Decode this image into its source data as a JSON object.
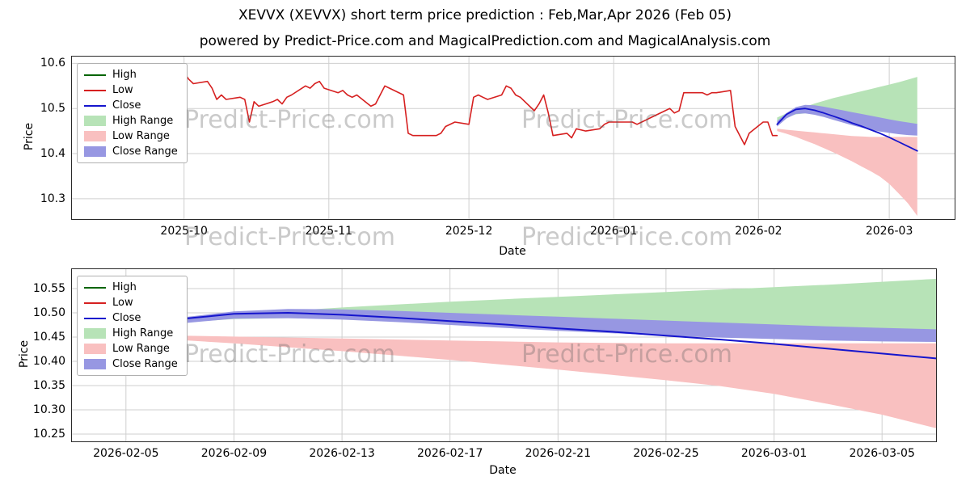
{
  "page": {
    "title": "XEVVX (XEVVX) short term price prediction : Feb,Mar,Apr 2026 (Feb 05)",
    "subtitle": "powered by Predict-Price.com and MagicalPrediction.com and MagicalAnalysis.com",
    "watermark": "Predict-Price.com"
  },
  "legend": {
    "items": [
      {
        "label": "High",
        "type": "line",
        "color": "#006400"
      },
      {
        "label": "Low",
        "type": "line",
        "color": "#d62020"
      },
      {
        "label": "Close",
        "type": "line",
        "color": "#1515cd"
      },
      {
        "label": "High Range",
        "type": "patch",
        "color": "#b7e3b7"
      },
      {
        "label": "Low Range",
        "type": "patch",
        "color": "#f9c0c0"
      },
      {
        "label": "Close Range",
        "type": "patch",
        "color": "#9797e2"
      }
    ]
  },
  "chart_data": {
    "colors": {
      "high": "#006400",
      "low": "#d62020",
      "close": "#1515cd",
      "high_range": "#b7e3b7",
      "low_range": "#f9c0c0",
      "close_range": "#9797e2"
    },
    "charts": [
      {
        "id": "history_with_forecast",
        "type": "line",
        "ylabel": "Price",
        "xlabel": "Date",
        "xlim": [
          "2025-09-07",
          "2026-03-15"
        ],
        "ylim": [
          10.255,
          10.615
        ],
        "grid": true,
        "legend_position": "upper-left",
        "yticks": [
          {
            "value": 10.3,
            "label": "10.3"
          },
          {
            "value": 10.4,
            "label": "10.4"
          },
          {
            "value": 10.5,
            "label": "10.5"
          },
          {
            "value": 10.6,
            "label": "10.6"
          }
        ],
        "xticks": [
          {
            "pos": "2025-10-01",
            "label": "2025-10"
          },
          {
            "pos": "2025-11-01",
            "label": "2025-11"
          },
          {
            "pos": "2025-12-01",
            "label": "2025-12"
          },
          {
            "pos": "2026-01-01",
            "label": "2026-01"
          },
          {
            "pos": "2026-02-01",
            "label": "2026-02"
          },
          {
            "pos": "2026-03-01",
            "label": "2026-03"
          }
        ]
      },
      {
        "id": "forecast_detail",
        "type": "line",
        "ylabel": "Price",
        "xlabel": "Date",
        "xlim": [
          "2026-02-03",
          "2026-03-07"
        ],
        "ylim": [
          10.235,
          10.59
        ],
        "grid": true,
        "legend_position": "upper-left",
        "yticks": [
          {
            "value": 10.25,
            "label": "10.25"
          },
          {
            "value": 10.3,
            "label": "10.30"
          },
          {
            "value": 10.35,
            "label": "10.35"
          },
          {
            "value": 10.4,
            "label": "10.40"
          },
          {
            "value": 10.45,
            "label": "10.45"
          },
          {
            "value": 10.5,
            "label": "10.50"
          },
          {
            "value": 10.55,
            "label": "10.55"
          }
        ],
        "xticks": [
          {
            "pos": "2026-02-05",
            "label": "2026-02-05"
          },
          {
            "pos": "2026-02-09",
            "label": "2026-02-09"
          },
          {
            "pos": "2026-02-13",
            "label": "2026-02-13"
          },
          {
            "pos": "2026-02-17",
            "label": "2026-02-17"
          },
          {
            "pos": "2026-02-21",
            "label": "2026-02-21"
          },
          {
            "pos": "2026-02-25",
            "label": "2026-02-25"
          },
          {
            "pos": "2026-03-01",
            "label": "2026-03-01"
          },
          {
            "pos": "2026-03-05",
            "label": "2026-03-05"
          }
        ]
      }
    ],
    "history_low": {
      "name": "Low",
      "points": [
        [
          "2025-09-12",
          10.595
        ],
        [
          "2025-09-15",
          10.59
        ],
        [
          "2025-09-16",
          10.55
        ],
        [
          "2025-09-17",
          10.555
        ],
        [
          "2025-09-18",
          10.55
        ],
        [
          "2025-09-19",
          10.555
        ],
        [
          "2025-09-22",
          10.555
        ],
        [
          "2025-09-23",
          10.56
        ],
        [
          "2025-09-24",
          10.565
        ],
        [
          "2025-09-25",
          10.555
        ],
        [
          "2025-09-26",
          10.565
        ],
        [
          "2025-09-29",
          10.57
        ],
        [
          "2025-09-30",
          10.575
        ],
        [
          "2025-10-01",
          10.58
        ],
        [
          "2025-10-02",
          10.565
        ],
        [
          "2025-10-03",
          10.555
        ],
        [
          "2025-10-06",
          10.56
        ],
        [
          "2025-10-07",
          10.545
        ],
        [
          "2025-10-08",
          10.52
        ],
        [
          "2025-10-09",
          10.53
        ],
        [
          "2025-10-10",
          10.52
        ],
        [
          "2025-10-13",
          10.525
        ],
        [
          "2025-10-14",
          10.52
        ],
        [
          "2025-10-15",
          10.47
        ],
        [
          "2025-10-16",
          10.515
        ],
        [
          "2025-10-17",
          10.505
        ],
        [
          "2025-10-20",
          10.515
        ],
        [
          "2025-10-21",
          10.52
        ],
        [
          "2025-10-22",
          10.51
        ],
        [
          "2025-10-23",
          10.525
        ],
        [
          "2025-10-24",
          10.53
        ],
        [
          "2025-10-27",
          10.55
        ],
        [
          "2025-10-28",
          10.545
        ],
        [
          "2025-10-29",
          10.555
        ],
        [
          "2025-10-30",
          10.56
        ],
        [
          "2025-10-31",
          10.545
        ],
        [
          "2025-11-03",
          10.535
        ],
        [
          "2025-11-04",
          10.54
        ],
        [
          "2025-11-05",
          10.53
        ],
        [
          "2025-11-06",
          10.525
        ],
        [
          "2025-11-07",
          10.53
        ],
        [
          "2025-11-10",
          10.505
        ],
        [
          "2025-11-11",
          10.51
        ],
        [
          "2025-11-12",
          10.53
        ],
        [
          "2025-11-13",
          10.55
        ],
        [
          "2025-11-14",
          10.545
        ],
        [
          "2025-11-17",
          10.53
        ],
        [
          "2025-11-18",
          10.445
        ],
        [
          "2025-11-19",
          10.44
        ],
        [
          "2025-11-20",
          10.44
        ],
        [
          "2025-11-21",
          10.44
        ],
        [
          "2025-11-24",
          10.44
        ],
        [
          "2025-11-25",
          10.445
        ],
        [
          "2025-11-26",
          10.46
        ],
        [
          "2025-11-28",
          10.47
        ],
        [
          "2025-12-01",
          10.465
        ],
        [
          "2025-12-02",
          10.525
        ],
        [
          "2025-12-03",
          10.53
        ],
        [
          "2025-12-04",
          10.525
        ],
        [
          "2025-12-05",
          10.52
        ],
        [
          "2025-12-08",
          10.53
        ],
        [
          "2025-12-09",
          10.55
        ],
        [
          "2025-12-10",
          10.545
        ],
        [
          "2025-12-11",
          10.53
        ],
        [
          "2025-12-12",
          10.525
        ],
        [
          "2025-12-15",
          10.495
        ],
        [
          "2025-12-16",
          10.51
        ],
        [
          "2025-12-17",
          10.53
        ],
        [
          "2025-12-18",
          10.49
        ],
        [
          "2025-12-19",
          10.44
        ],
        [
          "2025-12-22",
          10.445
        ],
        [
          "2025-12-23",
          10.435
        ],
        [
          "2025-12-24",
          10.455
        ],
        [
          "2025-12-26",
          10.45
        ],
        [
          "2025-12-29",
          10.455
        ],
        [
          "2025-12-30",
          10.465
        ],
        [
          "2025-12-31",
          10.47
        ],
        [
          "2026-01-02",
          10.47
        ],
        [
          "2026-01-05",
          10.47
        ],
        [
          "2026-01-06",
          10.465
        ],
        [
          "2026-01-07",
          10.47
        ],
        [
          "2026-01-08",
          10.475
        ],
        [
          "2026-01-09",
          10.48
        ],
        [
          "2026-01-12",
          10.495
        ],
        [
          "2026-01-13",
          10.5
        ],
        [
          "2026-01-14",
          10.49
        ],
        [
          "2026-01-15",
          10.495
        ],
        [
          "2026-01-16",
          10.535
        ],
        [
          "2026-01-20",
          10.535
        ],
        [
          "2026-01-21",
          10.53
        ],
        [
          "2026-01-22",
          10.535
        ],
        [
          "2026-01-23",
          10.535
        ],
        [
          "2026-01-26",
          10.54
        ],
        [
          "2026-01-27",
          10.46
        ],
        [
          "2026-01-28",
          10.44
        ],
        [
          "2026-01-29",
          10.42
        ],
        [
          "2026-01-30",
          10.445
        ],
        [
          "2026-02-02",
          10.47
        ],
        [
          "2026-02-03",
          10.47
        ],
        [
          "2026-02-04",
          10.44
        ],
        [
          "2026-02-05",
          10.44
        ]
      ]
    },
    "prediction": {
      "dates": [
        "2026-02-05",
        "2026-02-07",
        "2026-02-09",
        "2026-02-11",
        "2026-02-13",
        "2026-02-15",
        "2026-02-17",
        "2026-02-19",
        "2026-02-21",
        "2026-02-23",
        "2026-02-25",
        "2026-02-27",
        "2026-03-01",
        "2026-03-03",
        "2026-03-05",
        "2026-03-07"
      ],
      "close": [
        10.465,
        10.487,
        10.498,
        10.5,
        10.496,
        10.49,
        10.483,
        10.476,
        10.468,
        10.461,
        10.453,
        10.445,
        10.436,
        10.426,
        10.416,
        10.406
      ],
      "high_range_upper": [
        10.48,
        10.489,
        10.497,
        10.504,
        10.511,
        10.517,
        10.523,
        10.528,
        10.533,
        10.538,
        10.543,
        10.548,
        10.553,
        10.558,
        10.564,
        10.57
      ],
      "high_range_lower": [
        10.47,
        10.48,
        10.487,
        10.489,
        10.488,
        10.486,
        10.483,
        10.48,
        10.477,
        10.474,
        10.472,
        10.47,
        10.468,
        10.466,
        10.465,
        10.464
      ],
      "close_range_upper": [
        10.472,
        10.49,
        10.503,
        10.508,
        10.507,
        10.504,
        10.5,
        10.496,
        10.492,
        10.488,
        10.484,
        10.48,
        10.476,
        10.472,
        10.469,
        10.466
      ],
      "close_range_lower": [
        10.46,
        10.478,
        10.488,
        10.489,
        10.486,
        10.481,
        10.475,
        10.469,
        10.463,
        10.458,
        10.453,
        10.449,
        10.446,
        10.443,
        10.441,
        10.44
      ],
      "low_range_upper": [
        10.455,
        10.453,
        10.451,
        10.449,
        10.447,
        10.445,
        10.443,
        10.441,
        10.439,
        10.438,
        10.437,
        10.437,
        10.437,
        10.437,
        10.437,
        10.437
      ],
      "low_range_lower": [
        10.45,
        10.444,
        10.437,
        10.429,
        10.421,
        10.412,
        10.403,
        10.393,
        10.383,
        10.372,
        10.361,
        10.349,
        10.333,
        10.312,
        10.29,
        10.262
      ]
    }
  }
}
